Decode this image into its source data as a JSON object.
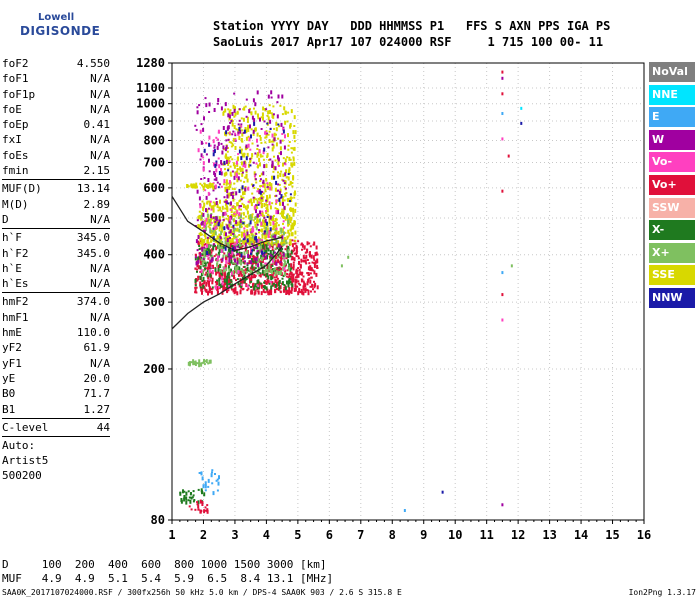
{
  "logo": {
    "top": "Lowell",
    "bottom": "DIGISONDE"
  },
  "header": {
    "line1": "Station YYYY DAY   DDD HHMMSS P1   FFS S AXN PPS IGA PS",
    "line2": "SaoLuis 2017 Apr17 107 024000 RSF     1 715 100 00- 11"
  },
  "params": [
    {
      "key": "foF2",
      "value": "4.550"
    },
    {
      "key": "foF1",
      "value": "N/A"
    },
    {
      "key": "foF1p",
      "value": "N/A"
    },
    {
      "key": "foE",
      "value": "N/A"
    },
    {
      "key": "foEp",
      "value": "0.41"
    },
    {
      "key": "fxI",
      "value": "N/A"
    },
    {
      "key": "foEs",
      "value": "N/A"
    },
    {
      "key": "fmin",
      "value": "2.15"
    },
    {
      "key": "MUF(D)",
      "value": "13.14"
    },
    {
      "key": "M(D)",
      "value": "2.89"
    },
    {
      "key": "D",
      "value": "N/A"
    },
    {
      "key": "h`F",
      "value": "345.0"
    },
    {
      "key": "h`F2",
      "value": "345.0"
    },
    {
      "key": "h`E",
      "value": "N/A"
    },
    {
      "key": "h`Es",
      "value": "N/A"
    },
    {
      "key": "hmF2",
      "value": "374.0"
    },
    {
      "key": "hmF1",
      "value": "N/A"
    },
    {
      "key": "hmE",
      "value": "110.0"
    },
    {
      "key": "yF2",
      "value": "61.9"
    },
    {
      "key": "yF1",
      "value": "N/A"
    },
    {
      "key": "yE",
      "value": "20.0"
    },
    {
      "key": "B0",
      "value": "71.7"
    },
    {
      "key": "B1",
      "value": "1.27"
    },
    {
      "key": "C-level",
      "value": "44"
    }
  ],
  "auto": {
    "line1": "Auto:",
    "line2": "Artist5",
    "line3": "500200"
  },
  "legend": [
    {
      "label": "NoVal",
      "color": "#7f7f7f"
    },
    {
      "label": "NNE",
      "color": "#00e5ff"
    },
    {
      "label": "E",
      "color": "#3fa9f5"
    },
    {
      "label": "W",
      "color": "#a000a0"
    },
    {
      "label": "Vo-",
      "color": "#ff40c0"
    },
    {
      "label": "Vo+",
      "color": "#e0103a"
    },
    {
      "label": "SSW",
      "color": "#f7b1a8"
    },
    {
      "label": "X-",
      "color": "#1f7a1f"
    },
    {
      "label": "X+",
      "color": "#7fc060"
    },
    {
      "label": "SSE",
      "color": "#d8d800"
    },
    {
      "label": "NNW",
      "color": "#1a1aa8"
    }
  ],
  "footer": {
    "d_line": "D     100  200  400  600  800 1000 1500 3000 [km]",
    "muf_line": "MUF   4.9  4.9  5.1  5.4  5.9  6.5  8.4 13.1 [MHz]",
    "left": "SAA0K_2017107024000.RSF / 300fx256h 50 kHz 5.0 km / DPS-4 SAA0K 903 / 2.6 S 315.8 E",
    "right": "Ion2Png 1.3.17"
  },
  "chart_data": {
    "type": "scatter",
    "title": "",
    "xlabel": "",
    "ylabel": "",
    "xlim": [
      1,
      16
    ],
    "ylim": [
      80,
      1280
    ],
    "x_ticks": [
      "1",
      "2",
      "3",
      "4",
      "5",
      "6",
      "7",
      "8",
      "9",
      "10",
      "11",
      "12",
      "13",
      "14",
      "15",
      "16"
    ],
    "y_ticks": [
      "80",
      "200",
      "300",
      "400",
      "500",
      "600",
      "700",
      "800",
      "900",
      "1000",
      "1100",
      "1280"
    ],
    "y_scale": "log",
    "grid": true,
    "trace_upper": {
      "x": [
        1.0,
        1.5,
        2.0,
        2.5,
        3.0,
        3.5,
        4.0,
        4.3,
        4.5
      ],
      "y": [
        570,
        490,
        460,
        430,
        410,
        420,
        435,
        440,
        445
      ]
    },
    "trace_lower": {
      "x": [
        1.0,
        1.5,
        2.0,
        2.5,
        3.0,
        3.5,
        4.0,
        4.3,
        4.5
      ],
      "y": [
        255,
        280,
        300,
        315,
        335,
        355,
        375,
        400,
        420
      ]
    },
    "clusters": [
      {
        "color": "#e0103a",
        "x": [
          1.7,
          5.6
        ],
        "y": [
          320,
          440
        ],
        "n": 700
      },
      {
        "color": "#1f7a1f",
        "x": [
          1.7,
          4.8
        ],
        "y": [
          330,
          430
        ],
        "n": 260
      },
      {
        "color": "#d8d800",
        "x": [
          1.8,
          4.9
        ],
        "y": [
          430,
          560
        ],
        "n": 500
      },
      {
        "color": "#7fc060",
        "x": [
          1.9,
          4.7
        ],
        "y": [
          360,
          520
        ],
        "n": 200
      },
      {
        "color": "#d8d800",
        "x": [
          2.6,
          4.9
        ],
        "y": [
          560,
          1000
        ],
        "n": 380
      },
      {
        "color": "#a000a0",
        "x": [
          1.7,
          4.6
        ],
        "y": [
          380,
          1100
        ],
        "n": 300
      },
      {
        "color": "#ff40c0",
        "x": [
          1.8,
          4.6
        ],
        "y": [
          330,
          900
        ],
        "n": 140
      },
      {
        "color": "#1a1aa8",
        "x": [
          2.0,
          4.8
        ],
        "y": [
          400,
          900
        ],
        "n": 60
      },
      {
        "color": "#d8d800",
        "x": [
          1.4,
          2.3
        ],
        "y": [
          605,
          620
        ],
        "n": 40
      },
      {
        "color": "#7fc060",
        "x": [
          1.5,
          2.2
        ],
        "y": [
          207,
          213
        ],
        "n": 25
      },
      {
        "color": "#1f7a1f",
        "x": [
          1.2,
          2.0
        ],
        "y": [
          90,
          97
        ],
        "n": 30
      },
      {
        "color": "#e0103a",
        "x": [
          1.5,
          2.1
        ],
        "y": [
          85,
          91
        ],
        "n": 20
      },
      {
        "color": "#3fa9f5",
        "x": [
          1.8,
          2.5
        ],
        "y": [
          95,
          110
        ],
        "n": 20
      }
    ],
    "isolated_points": [
      {
        "x": 11.5,
        "y": 1215,
        "c": "#e0103a"
      },
      {
        "x": 11.5,
        "y": 1170,
        "c": "#a000a0"
      },
      {
        "x": 11.5,
        "y": 1065,
        "c": "#e0103a"
      },
      {
        "x": 11.5,
        "y": 945,
        "c": "#3fa9f5"
      },
      {
        "x": 11.5,
        "y": 810,
        "c": "#ff40c0"
      },
      {
        "x": 11.5,
        "y": 590,
        "c": "#e0103a"
      },
      {
        "x": 11.5,
        "y": 360,
        "c": "#3fa9f5"
      },
      {
        "x": 11.5,
        "y": 315,
        "c": "#e0103a"
      },
      {
        "x": 11.5,
        "y": 270,
        "c": "#ff40c0"
      },
      {
        "x": 11.5,
        "y": 88,
        "c": "#a000a0"
      },
      {
        "x": 11.7,
        "y": 730,
        "c": "#e0103a"
      },
      {
        "x": 12.1,
        "y": 975,
        "c": "#00e5ff"
      },
      {
        "x": 12.1,
        "y": 890,
        "c": "#1a1aa8"
      },
      {
        "x": 11.8,
        "y": 375,
        "c": "#7fc060"
      },
      {
        "x": 9.6,
        "y": 95,
        "c": "#1a1aa8"
      },
      {
        "x": 8.4,
        "y": 85,
        "c": "#3fa9f5"
      },
      {
        "x": 6.6,
        "y": 395,
        "c": "#7fc060"
      },
      {
        "x": 6.4,
        "y": 375,
        "c": "#7fc060"
      }
    ]
  }
}
